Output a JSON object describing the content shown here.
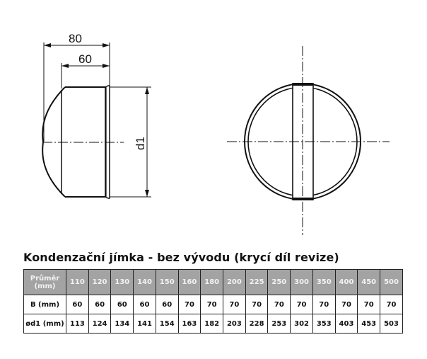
{
  "drawing": {
    "dim_overall": "80",
    "dim_body": "60",
    "dim_diameter": "d1"
  },
  "title": "Kondenzační jímka - bez vývodu (krycí díl revize)",
  "table": {
    "header_label": "Průměr (mm)",
    "diameters": [
      "110",
      "120",
      "130",
      "140",
      "150",
      "160",
      "180",
      "200",
      "225",
      "250",
      "300",
      "350",
      "400",
      "450",
      "500"
    ],
    "rows": [
      {
        "label": "B (mm)",
        "values": [
          "60",
          "60",
          "60",
          "60",
          "60",
          "70",
          "70",
          "70",
          "70",
          "70",
          "70",
          "70",
          "70",
          "70",
          "70"
        ]
      },
      {
        "label": "ød1 (mm)",
        "values": [
          "113",
          "124",
          "134",
          "141",
          "154",
          "163",
          "182",
          "203",
          "228",
          "253",
          "302",
          "353",
          "403",
          "453",
          "503"
        ]
      }
    ]
  },
  "colors": {
    "header_bg": "#a3a3a3",
    "header_text": "#f2f2f2",
    "line": "#111111"
  }
}
